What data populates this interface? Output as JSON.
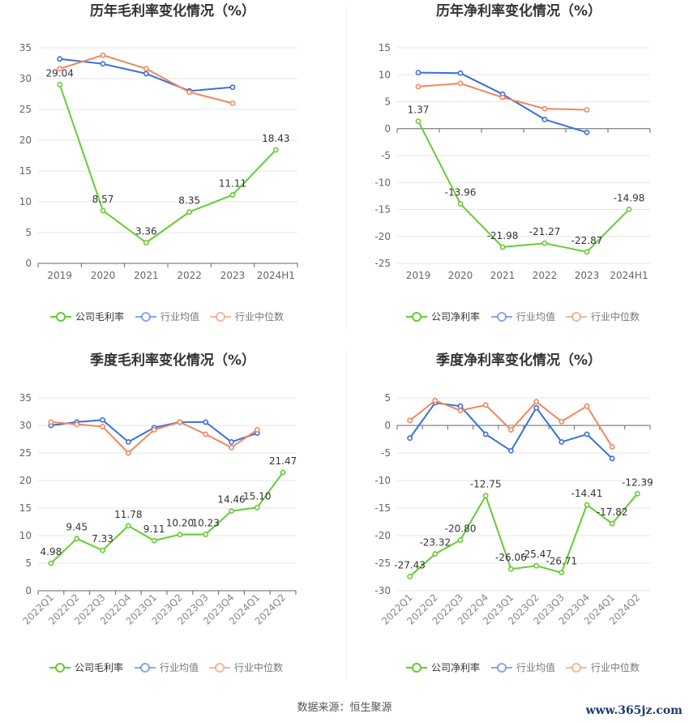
{
  "colors": {
    "company": "#66cc33",
    "avg": "#3b6fde",
    "median": "#f0875c",
    "grid": "#e6e6e6",
    "axis": "#999999",
    "text": "#333333"
  },
  "legend_common": {
    "avg": "行业均值",
    "median": "行业中位数"
  },
  "source": "数据来源：恒生聚源",
  "watermark": "www.365jz.com",
  "chart_data": [
    {
      "type": "line",
      "title": "历年毛利率变化情况（%）",
      "categories": [
        "2019",
        "2020",
        "2021",
        "2022",
        "2023",
        "2024H1"
      ],
      "ylim": [
        0,
        35
      ],
      "yticks": [
        0,
        5,
        10,
        15,
        20,
        25,
        30,
        35
      ],
      "grid": true,
      "legend": "bottom",
      "series": [
        {
          "name": "公司毛利率",
          "role": "company",
          "values": [
            29.04,
            8.57,
            3.36,
            8.35,
            11.11,
            18.43
          ],
          "labels": [
            "29.04",
            "8.57",
            "3.36",
            "8.35",
            "11.11",
            "18.43"
          ]
        },
        {
          "name": "行业均值",
          "role": "avg",
          "values": [
            33.2,
            32.4,
            30.8,
            28.0,
            28.6,
            null
          ]
        },
        {
          "name": "行业中位数",
          "role": "median",
          "values": [
            31.6,
            33.8,
            31.6,
            27.8,
            26.0,
            null
          ]
        }
      ]
    },
    {
      "type": "line",
      "title": "历年净利率变化情况（%）",
      "categories": [
        "2019",
        "2020",
        "2021",
        "2022",
        "2023",
        "2024H1"
      ],
      "ylim": [
        -25,
        15
      ],
      "yticks": [
        -25,
        -20,
        -15,
        -10,
        -5,
        0,
        5,
        10,
        15
      ],
      "grid": true,
      "legend": "bottom",
      "series": [
        {
          "name": "公司净利率",
          "role": "company",
          "values": [
            1.37,
            -13.96,
            -21.98,
            -21.27,
            -22.87,
            -14.98
          ],
          "labels": [
            "1.37",
            "-13.96",
            "-21.98",
            "-21.27",
            "-22.87",
            "-14.98"
          ]
        },
        {
          "name": "行业均值",
          "role": "avg",
          "values": [
            10.4,
            10.3,
            6.4,
            1.7,
            -0.7,
            null
          ]
        },
        {
          "name": "行业中位数",
          "role": "median",
          "values": [
            7.8,
            8.4,
            5.8,
            3.7,
            3.5,
            null
          ]
        }
      ]
    },
    {
      "type": "line",
      "title": "季度毛利率变化情况（%）",
      "categories": [
        "2022Q1",
        "2022Q2",
        "2022Q3",
        "2022Q4",
        "2023Q1",
        "2023Q2",
        "2023Q3",
        "2023Q4",
        "2024Q1",
        "2024Q2"
      ],
      "ylim": [
        0,
        35
      ],
      "yticks": [
        0,
        5,
        10,
        15,
        20,
        25,
        30,
        35
      ],
      "grid": true,
      "legend": "bottom",
      "series": [
        {
          "name": "公司毛利率",
          "role": "company",
          "values": [
            4.98,
            9.45,
            7.33,
            11.78,
            9.11,
            10.2,
            10.23,
            14.46,
            15.1,
            21.47
          ],
          "labels": [
            "4.98",
            "9.45",
            "7.33",
            "11.78",
            "9.11",
            "10.20",
            "10.23",
            "14.46",
            "15.10",
            "21.47"
          ]
        },
        {
          "name": "行业均值",
          "role": "avg",
          "values": [
            30.0,
            30.6,
            31.0,
            27.0,
            29.6,
            30.6,
            30.6,
            27.0,
            28.6,
            null
          ]
        },
        {
          "name": "行业中位数",
          "role": "median",
          "values": [
            30.6,
            30.2,
            29.8,
            25.0,
            29.2,
            30.6,
            28.4,
            26.0,
            29.2,
            null
          ]
        }
      ]
    },
    {
      "type": "line",
      "title": "季度净利率变化情况（%）",
      "categories": [
        "2022Q1",
        "2022Q2",
        "2022Q3",
        "2022Q4",
        "2023Q1",
        "2023Q2",
        "2023Q3",
        "2023Q4",
        "2024Q1",
        "2024Q2"
      ],
      "ylim": [
        -30,
        5
      ],
      "yticks": [
        -30,
        -25,
        -20,
        -15,
        -10,
        -5,
        0,
        5
      ],
      "grid": true,
      "legend": "bottom",
      "series": [
        {
          "name": "公司净利率",
          "role": "company",
          "values": [
            -27.43,
            -23.32,
            -20.8,
            -12.75,
            -26.06,
            -25.47,
            -26.71,
            -14.41,
            -17.82,
            -12.39
          ],
          "labels": [
            "-27.43",
            "-23.32",
            "-20.80",
            "-12.75",
            "-26.06",
            "-25.47",
            "-26.71",
            "-14.41",
            "-17.82",
            "-12.39"
          ]
        },
        {
          "name": "行业均值",
          "role": "avg",
          "values": [
            -2.3,
            4.1,
            3.5,
            -1.6,
            -4.6,
            3.2,
            -3.0,
            -1.6,
            -6.0,
            null
          ]
        },
        {
          "name": "行业中位数",
          "role": "median",
          "values": [
            0.9,
            4.5,
            2.7,
            3.7,
            -0.8,
            4.3,
            0.7,
            3.5,
            -3.9,
            null
          ]
        }
      ]
    }
  ]
}
